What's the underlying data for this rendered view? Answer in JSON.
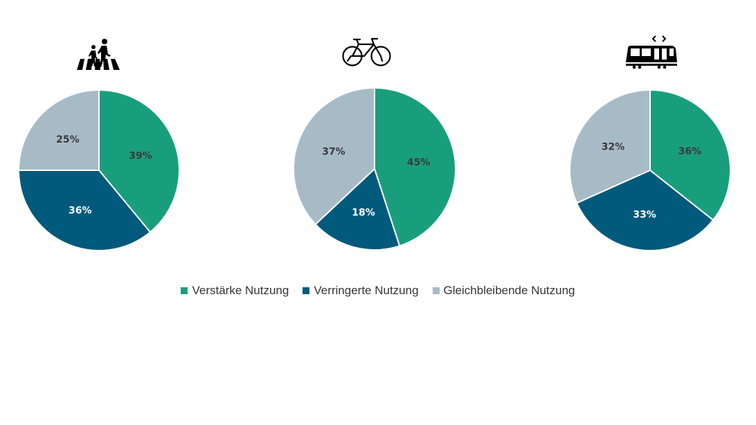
{
  "chart_data": [
    {
      "type": "pie",
      "icon": "pedestrian-crossing-icon",
      "categories": [
        "Verstärke Nutzung",
        "Verringerte Nutzung",
        "Gleichbleibende Nutzung"
      ],
      "values": [
        39,
        36,
        25
      ],
      "labels": [
        "39%",
        "36%",
        "25%"
      ]
    },
    {
      "type": "pie",
      "icon": "bicycle-icon",
      "categories": [
        "Verstärke Nutzung",
        "Verringerte Nutzung",
        "Gleichbleibende Nutzung"
      ],
      "values": [
        45,
        18,
        37
      ],
      "labels": [
        "45%",
        "18%",
        "37%"
      ]
    },
    {
      "type": "pie",
      "icon": "tram-icon",
      "categories": [
        "Verstärke Nutzung",
        "Verringerte Nutzung",
        "Gleichbleibende Nutzung"
      ],
      "values": [
        36,
        33,
        32
      ],
      "labels": [
        "36%",
        "33%",
        "32%"
      ]
    }
  ],
  "legend": {
    "items": [
      "Verstärke Nutzung",
      "Verringerte Nutzung",
      "Gleichbleibende Nutzung"
    ],
    "placement": "bottom"
  },
  "colors": {
    "increased": "#199e7d",
    "decreased": "#005a7c",
    "unchanged": "#a7bbc7",
    "label_dark": "#3a3a3a",
    "label_light": "#ffffff"
  }
}
